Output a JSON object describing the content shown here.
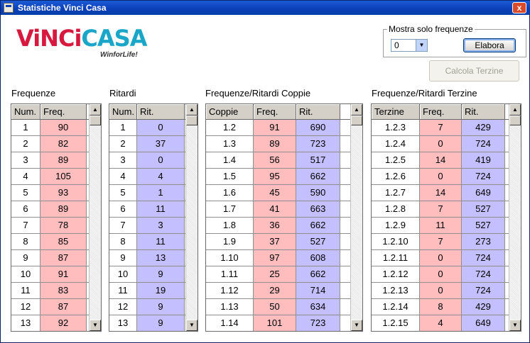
{
  "window": {
    "title": "Statistiche Vinci Casa",
    "close_label": "x"
  },
  "logo": {
    "part1": "ViNCi",
    "part2": "CASA",
    "tagline": "WinforLife!"
  },
  "controls": {
    "group_label": "Mostra solo frequenze",
    "combo_value": "0",
    "elabora_label": "Elabora",
    "calcola_label": "Calcola Terzine"
  },
  "tables": {
    "frequenze": {
      "heading": "Frequenze",
      "columns": [
        "Num.",
        "Freq."
      ],
      "rows": [
        [
          "1",
          "90"
        ],
        [
          "2",
          "82"
        ],
        [
          "3",
          "89"
        ],
        [
          "4",
          "105"
        ],
        [
          "5",
          "93"
        ],
        [
          "6",
          "89"
        ],
        [
          "7",
          "78"
        ],
        [
          "8",
          "85"
        ],
        [
          "9",
          "87"
        ],
        [
          "10",
          "91"
        ],
        [
          "11",
          "83"
        ],
        [
          "12",
          "87"
        ],
        [
          "13",
          "92"
        ]
      ]
    },
    "ritardi": {
      "heading": "Ritardi",
      "columns": [
        "Num.",
        "Rit."
      ],
      "rows": [
        [
          "1",
          "0"
        ],
        [
          "2",
          "37"
        ],
        [
          "3",
          "0"
        ],
        [
          "4",
          "4"
        ],
        [
          "5",
          "1"
        ],
        [
          "6",
          "11"
        ],
        [
          "7",
          "3"
        ],
        [
          "8",
          "11"
        ],
        [
          "9",
          "13"
        ],
        [
          "10",
          "9"
        ],
        [
          "11",
          "19"
        ],
        [
          "12",
          "9"
        ],
        [
          "13",
          "9"
        ]
      ]
    },
    "coppie": {
      "heading": "Frequenze/Ritardi Coppie",
      "columns": [
        "Coppie",
        "Freq.",
        "Rit."
      ],
      "rows": [
        [
          "1.2",
          "91",
          "690"
        ],
        [
          "1.3",
          "89",
          "723"
        ],
        [
          "1.4",
          "56",
          "517"
        ],
        [
          "1.5",
          "95",
          "662"
        ],
        [
          "1.6",
          "45",
          "590"
        ],
        [
          "1.7",
          "41",
          "663"
        ],
        [
          "1.8",
          "36",
          "662"
        ],
        [
          "1.9",
          "37",
          "527"
        ],
        [
          "1.10",
          "97",
          "608"
        ],
        [
          "1.11",
          "25",
          "662"
        ],
        [
          "1.12",
          "29",
          "714"
        ],
        [
          "1.13",
          "50",
          "634"
        ],
        [
          "1.14",
          "101",
          "723"
        ]
      ]
    },
    "terzine": {
      "heading": "Frequenze/Ritardi Terzine",
      "columns": [
        "Terzine",
        "Freq.",
        "Rit."
      ],
      "rows": [
        [
          "1.2.3",
          "7",
          "429"
        ],
        [
          "1.2.4",
          "0",
          "724"
        ],
        [
          "1.2.5",
          "14",
          "419"
        ],
        [
          "1.2.6",
          "0",
          "724"
        ],
        [
          "1.2.7",
          "14",
          "649"
        ],
        [
          "1.2.8",
          "7",
          "527"
        ],
        [
          "1.2.9",
          "11",
          "527"
        ],
        [
          "1.2.10",
          "7",
          "273"
        ],
        [
          "1.2.11",
          "0",
          "724"
        ],
        [
          "1.2.12",
          "0",
          "724"
        ],
        [
          "1.2.13",
          "0",
          "724"
        ],
        [
          "1.2.14",
          "8",
          "429"
        ],
        [
          "1.2.15",
          "4",
          "649"
        ]
      ]
    }
  },
  "colors": {
    "freq": "#ffbdbd",
    "rit": "#c4bfff",
    "title_bar": "#0a3fb8"
  },
  "icons": {
    "scroll_up": "arrow-up-icon",
    "scroll_down": "arrow-down-icon",
    "combo": "chevron-down-icon"
  }
}
